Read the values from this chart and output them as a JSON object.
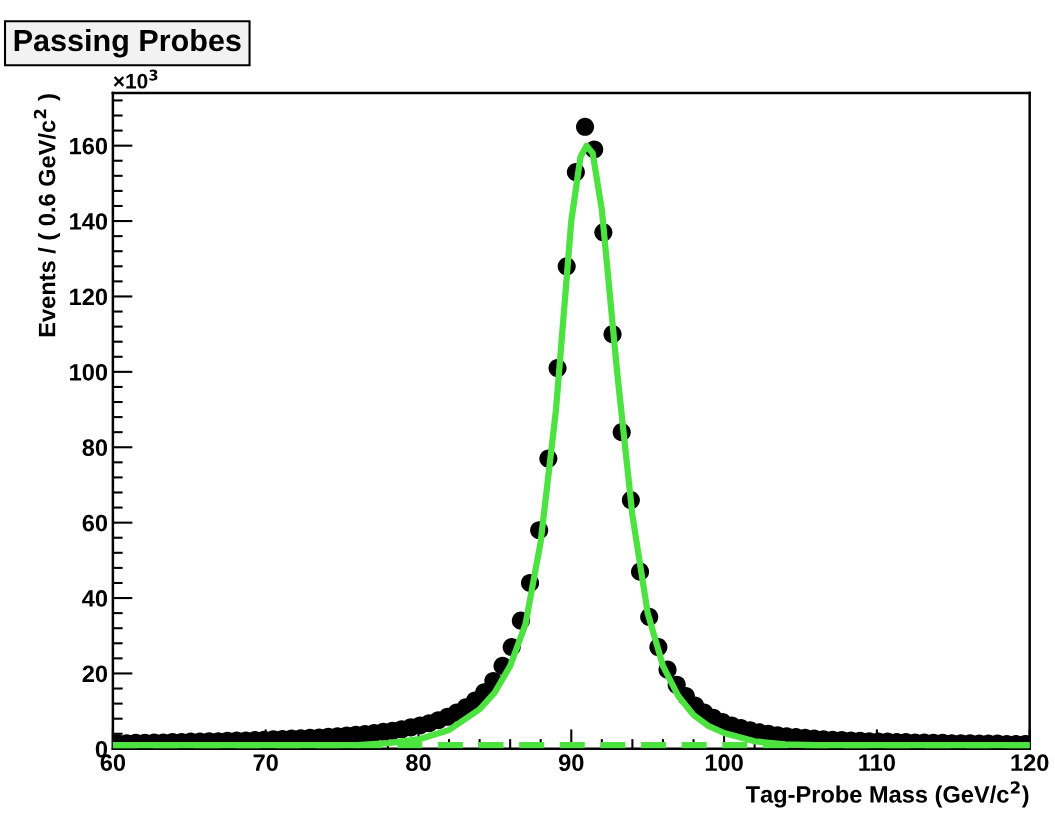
{
  "chart_data": {
    "type": "scatter",
    "title": "Passing Probes",
    "xlabel": "Tag-Probe Mass (GeV/c$^{2}$)",
    "ylabel": "Events / ( 0.6 GeV/c$^{2}$ )",
    "annotations": [
      "×10$^{3}$"
    ],
    "xlim": [
      60,
      120
    ],
    "xticks": [
      60,
      70,
      80,
      90,
      100,
      110,
      120
    ],
    "ylim": [
      0,
      174
    ],
    "yticks": [
      0,
      20,
      40,
      60,
      80,
      100,
      120,
      140,
      160
    ],
    "grid": false,
    "series": [
      {
        "color": "#000000",
        "marker": "circle",
        "x": [
          60.3,
          60.9,
          61.5,
          62.1,
          62.7,
          63.3,
          63.9,
          64.5,
          65.1,
          65.7,
          66.3,
          66.9,
          67.5,
          68.1,
          68.7,
          69.3,
          69.9,
          70.5,
          71.1,
          71.7,
          72.3,
          72.9,
          73.5,
          74.1,
          74.7,
          75.3,
          75.9,
          76.5,
          77.1,
          77.7,
          78.3,
          78.9,
          79.5,
          80.1,
          80.7,
          81.3,
          81.9,
          82.5,
          83.1,
          83.7,
          84.3,
          84.9,
          85.5,
          86.1,
          86.7,
          87.3,
          87.9,
          88.5,
          89.1,
          89.7,
          90.3,
          90.9,
          91.5,
          92.1,
          92.7,
          93.3,
          93.9,
          94.5,
          95.1,
          95.7,
          96.3,
          96.9,
          97.5,
          98.1,
          98.7,
          99.3,
          99.9,
          100.5,
          101.1,
          101.7,
          102.3,
          102.9,
          103.5,
          104.1,
          104.7,
          105.3,
          105.9,
          106.5,
          107.1,
          107.7,
          108.3,
          108.9,
          109.5,
          110.1,
          110.7,
          111.3,
          111.9,
          112.5,
          113.1,
          113.7,
          114.3,
          114.9,
          115.5,
          116.1,
          116.7,
          117.3,
          117.9,
          118.5,
          119.1,
          119.7
        ],
        "values": [
          1.5,
          1.5,
          1.6,
          1.6,
          1.7,
          1.7,
          1.8,
          1.8,
          1.9,
          1.9,
          2.0,
          2.0,
          2.1,
          2.2,
          2.2,
          2.3,
          2.4,
          2.5,
          2.6,
          2.7,
          2.8,
          2.9,
          3.0,
          3.2,
          3.3,
          3.5,
          3.7,
          3.9,
          4.2,
          4.5,
          4.8,
          5.2,
          5.7,
          6.2,
          6.8,
          7.6,
          8.5,
          9.6,
          11,
          12.8,
          15,
          18,
          22,
          27,
          34,
          44,
          58,
          77,
          101,
          128,
          153,
          165,
          159,
          137,
          110,
          84,
          66,
          47,
          35,
          27,
          21,
          17,
          14,
          11.5,
          9.6,
          8.2,
          7.1,
          6.2,
          5.5,
          4.9,
          4.4,
          4.0,
          3.6,
          3.3,
          3.1,
          2.9,
          2.7,
          2.5,
          2.4,
          2.3,
          2.2,
          2.1,
          2.0,
          1.9,
          1.9,
          1.8,
          1.8,
          1.7,
          1.7,
          1.6,
          1.6,
          1.5,
          1.5,
          1.5,
          1.4,
          1.4,
          1.4,
          1.3,
          1.3,
          1.3
        ]
      },
      {
        "type": "line",
        "color": "#4ce23f",
        "line_style": "solid",
        "marker": "none",
        "x": [
          60,
          76,
          78,
          80,
          82,
          84,
          85,
          86,
          87,
          88,
          89,
          90,
          90.6,
          91,
          91.4,
          92,
          93,
          94,
          95,
          96,
          97,
          98,
          99,
          100,
          102,
          104,
          106,
          120
        ],
        "values": [
          1,
          1,
          1.5,
          2.5,
          5,
          10.5,
          15,
          22,
          33,
          55,
          90,
          140,
          157,
          160,
          158,
          143,
          100,
          62,
          36,
          22,
          14,
          9,
          6,
          4.2,
          2,
          1.2,
          1,
          1
        ]
      },
      {
        "type": "line",
        "color": "#4ce23f",
        "line_style": "dashed",
        "marker": "none",
        "x": [
          60,
          120
        ],
        "values": [
          1,
          1
        ]
      }
    ]
  }
}
